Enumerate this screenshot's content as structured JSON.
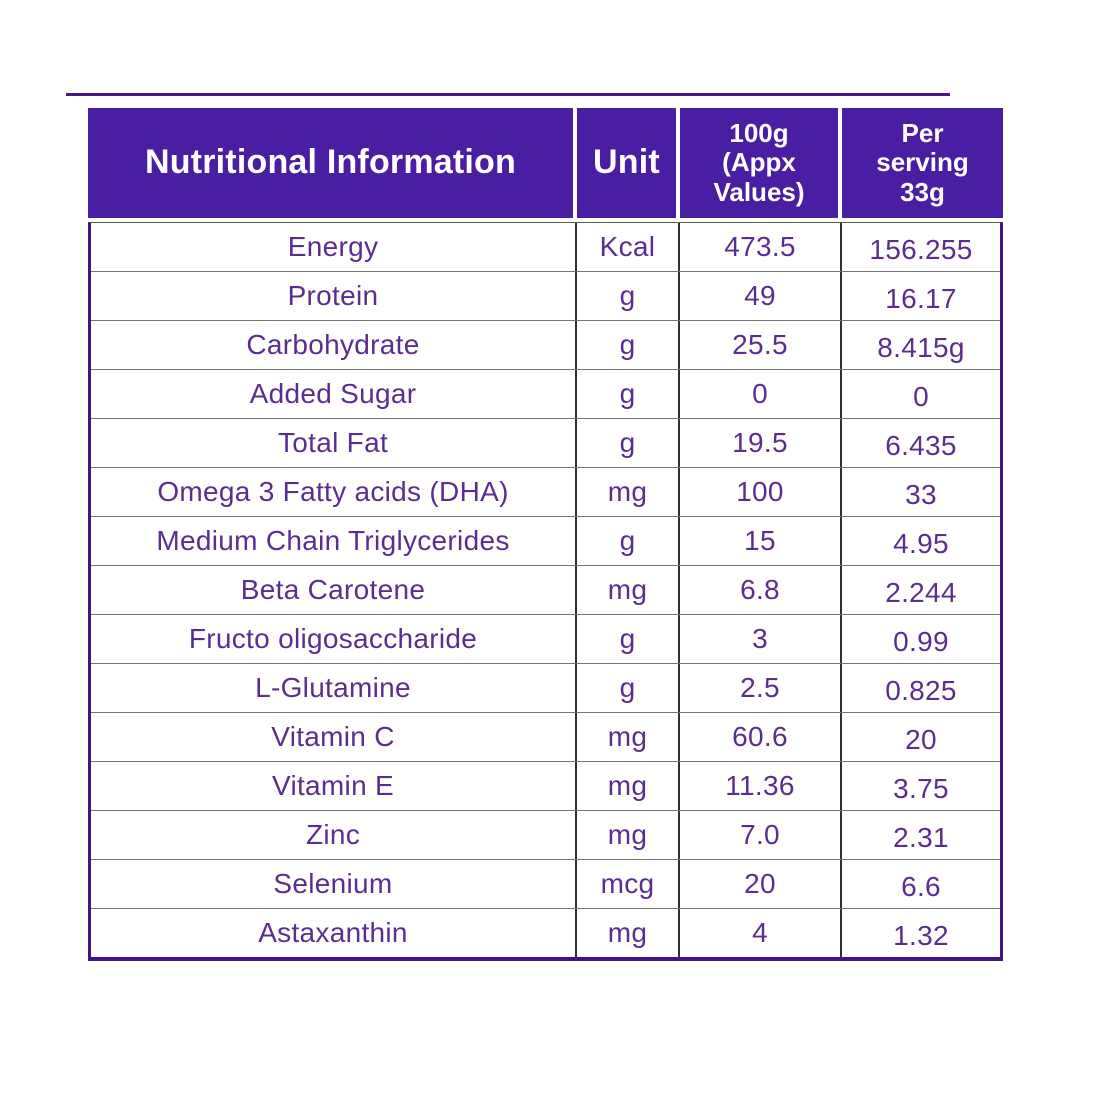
{
  "colors": {
    "header_background": "#4a1ea3",
    "header_text": "#ffffff",
    "body_text": "#5c2d90",
    "outer_border": "#441580",
    "row_line": "#757575",
    "column_line": "#303030",
    "page_background": "#ffffff"
  },
  "table": {
    "header": {
      "col1": "Nutritional Information",
      "col2": "Unit",
      "col3_lines": [
        "100g",
        "(Appx",
        "Values)"
      ],
      "col4_lines": [
        "Per",
        "serving",
        "33g"
      ]
    },
    "rows": [
      {
        "name": "Energy",
        "unit": "Kcal",
        "v100": "473.5",
        "vserv": "156.255"
      },
      {
        "name": "Protein",
        "unit": "g",
        "v100": "49",
        "vserv": "16.17"
      },
      {
        "name": "Carbohydrate",
        "unit": "g",
        "v100": "25.5",
        "vserv": "8.415g"
      },
      {
        "name": "Added Sugar",
        "unit": "g",
        "v100": "0",
        "vserv": "0"
      },
      {
        "name": "Total Fat",
        "unit": "g",
        "v100": "19.5",
        "vserv": "6.435"
      },
      {
        "name": "Omega 3 Fatty acids (DHA)",
        "unit": "mg",
        "v100": "100",
        "vserv": "33"
      },
      {
        "name": "Medium Chain Triglycerides",
        "unit": "g",
        "v100": "15",
        "vserv": "4.95"
      },
      {
        "name": "Beta Carotene",
        "unit": "mg",
        "v100": "6.8",
        "vserv": "2.244"
      },
      {
        "name": "Fructo oligosaccharide",
        "unit": "g",
        "v100": "3",
        "vserv": "0.99"
      },
      {
        "name": "L-Glutamine",
        "unit": "g",
        "v100": "2.5",
        "vserv": "0.825"
      },
      {
        "name": "Vitamin C",
        "unit": "mg",
        "v100": "60.6",
        "vserv": "20"
      },
      {
        "name": "Vitamin E",
        "unit": "mg",
        "v100": "11.36",
        "vserv": "3.75"
      },
      {
        "name": "Zinc",
        "unit": "mg",
        "v100": "7.0",
        "vserv": "2.31"
      },
      {
        "name": "Selenium",
        "unit": "mcg",
        "v100": "20",
        "vserv": "6.6"
      },
      {
        "name": "Astaxanthin",
        "unit": "mg",
        "v100": "4",
        "vserv": "1.32"
      }
    ]
  }
}
